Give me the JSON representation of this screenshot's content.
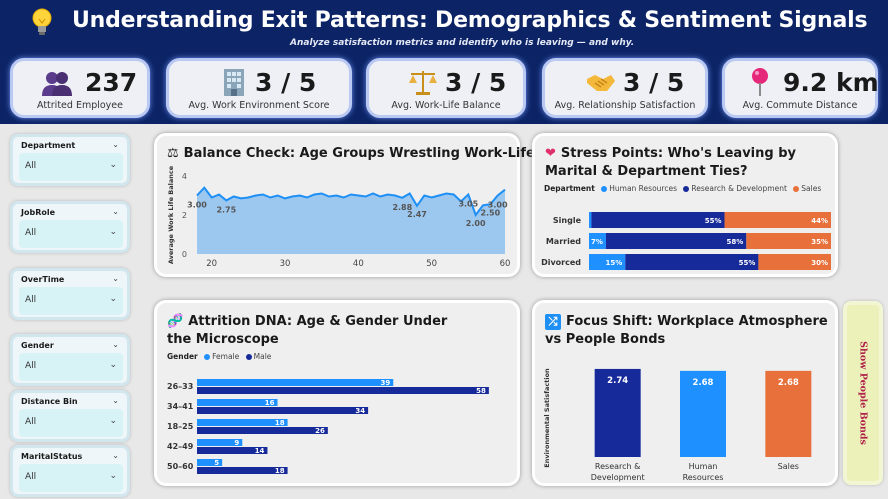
{
  "header": {
    "title": "Understanding Exit Patterns: Demographics & Sentiment Signals",
    "subtitle": "Analyze satisfaction metrics and identify who is leaving — and why.",
    "icon": "lightbulb-icon"
  },
  "kpis": [
    {
      "icon": "people-icon",
      "value": "237",
      "label": "Attrited Employee"
    },
    {
      "icon": "office-building-icon",
      "value": "3 / 5",
      "label": "Avg. Work Environment Score"
    },
    {
      "icon": "balance-scale-icon",
      "value": "3 / 5",
      "label": "Avg. Work-Life Balance"
    },
    {
      "icon": "handshake-icon",
      "value": "3 / 5",
      "label": "Avg. Relationship Satisfaction"
    },
    {
      "icon": "pushpin-icon",
      "value": "9.2 km",
      "label": "Avg. Commute Distance"
    }
  ],
  "slicers": [
    {
      "title": "Department",
      "value": "All"
    },
    {
      "title": "JobRole",
      "value": "All"
    },
    {
      "title": "OverTime",
      "value": "All"
    },
    {
      "title": "Gender",
      "value": "All"
    },
    {
      "title": "Distance Bin",
      "value": "All"
    },
    {
      "title": "MaritalStatus",
      "value": "All"
    }
  ],
  "toggle_label": "Show People Bonds",
  "colors": {
    "hr": "#1e90ff",
    "rnd": "#172a9a",
    "sales": "#e8703a",
    "female": "#1e90ff",
    "male": "#172a9a",
    "area_fill": "#9cc8f0",
    "area_line": "#1e8ff5"
  },
  "chart_data": [
    {
      "type": "area",
      "title": "Balance Check: Age Groups Wrestling Work-Life",
      "icon": "balance-scale-icon",
      "xlabel": "",
      "ylabel": "Average Work Life Balance",
      "xlim": [
        18,
        60
      ],
      "ylim": [
        0,
        4
      ],
      "xticks": [
        20,
        30,
        40,
        50,
        60
      ],
      "yticks": [
        0,
        2,
        4
      ],
      "x": [
        18,
        19,
        20,
        21,
        22,
        23,
        24,
        25,
        26,
        27,
        28,
        29,
        30,
        31,
        32,
        33,
        34,
        35,
        36,
        37,
        38,
        39,
        40,
        41,
        42,
        43,
        44,
        45,
        46,
        47,
        48,
        49,
        50,
        51,
        52,
        53,
        54,
        55,
        56,
        57,
        58,
        59,
        60
      ],
      "y": [
        3.0,
        3.4,
        2.9,
        3.05,
        2.75,
        2.95,
        2.85,
        2.9,
        3.0,
        3.05,
        2.9,
        3.0,
        2.85,
        2.95,
        3.0,
        2.9,
        3.05,
        3.1,
        2.95,
        3.0,
        2.9,
        3.05,
        3.0,
        2.95,
        3.1,
        2.95,
        3.05,
        3.0,
        2.88,
        3.1,
        2.47,
        3.0,
        2.9,
        3.0,
        3.1,
        3.05,
        2.7,
        3.05,
        2.0,
        2.5,
        2.55,
        3.0,
        3.3
      ],
      "data_labels": [
        {
          "x": 18,
          "text": "3.00"
        },
        {
          "x": 22,
          "text": "2.75"
        },
        {
          "x": 46,
          "text": "2.88"
        },
        {
          "x": 48,
          "text": "2.47"
        },
        {
          "x": 55,
          "text": "3.05"
        },
        {
          "x": 56,
          "text": "2.00"
        },
        {
          "x": 58,
          "text": "2.50"
        },
        {
          "x": 59,
          "text": "3.00"
        }
      ]
    },
    {
      "type": "bar",
      "orientation": "horizontal",
      "stacked": "100%",
      "title": "Stress Points: Who's Leaving by Marital & Department Ties?",
      "icon": "heart-icon",
      "legend_title": "Department",
      "categories": [
        "Single",
        "Married",
        "Divorced"
      ],
      "series": [
        {
          "name": "Human Resources",
          "values": [
            1,
            7,
            15
          ],
          "labels": [
            "",
            "7%",
            "15%"
          ]
        },
        {
          "name": "Research & Development",
          "values": [
            55,
            58,
            55
          ],
          "labels": [
            "55%",
            "58%",
            "55%"
          ]
        },
        {
          "name": "Sales",
          "values": [
            44,
            35,
            30
          ],
          "labels": [
            "44%",
            "35%",
            "30%"
          ]
        }
      ]
    },
    {
      "type": "bar",
      "orientation": "horizontal",
      "title": "Attrition DNA: Age & Gender Under the Microscope",
      "icon": "dna-icon",
      "legend_title": "Gender",
      "categories": [
        "26–33",
        "34–41",
        "18–25",
        "42–49",
        "50–60"
      ],
      "series": [
        {
          "name": "Female",
          "values": [
            39,
            16,
            18,
            9,
            5
          ]
        },
        {
          "name": "Male",
          "values": [
            58,
            34,
            26,
            14,
            18
          ]
        }
      ],
      "xlim": [
        0,
        62
      ]
    },
    {
      "type": "bar",
      "title": "Focus Shift: Workplace Atmosphere vs People Bonds",
      "icon": "shuffle-icon",
      "ylabel": "Environmental Satisfaction",
      "categories": [
        "Research & Development",
        "Human Resources",
        "Sales"
      ],
      "category_lines": [
        [
          "Research &",
          "Development"
        ],
        [
          "Human",
          "Resources"
        ],
        [
          "Sales"
        ]
      ],
      "values": [
        2.74,
        2.68,
        2.68
      ],
      "labels": [
        "2.74",
        "2.68",
        "2.68"
      ],
      "ylim": [
        0,
        2.8
      ]
    }
  ]
}
